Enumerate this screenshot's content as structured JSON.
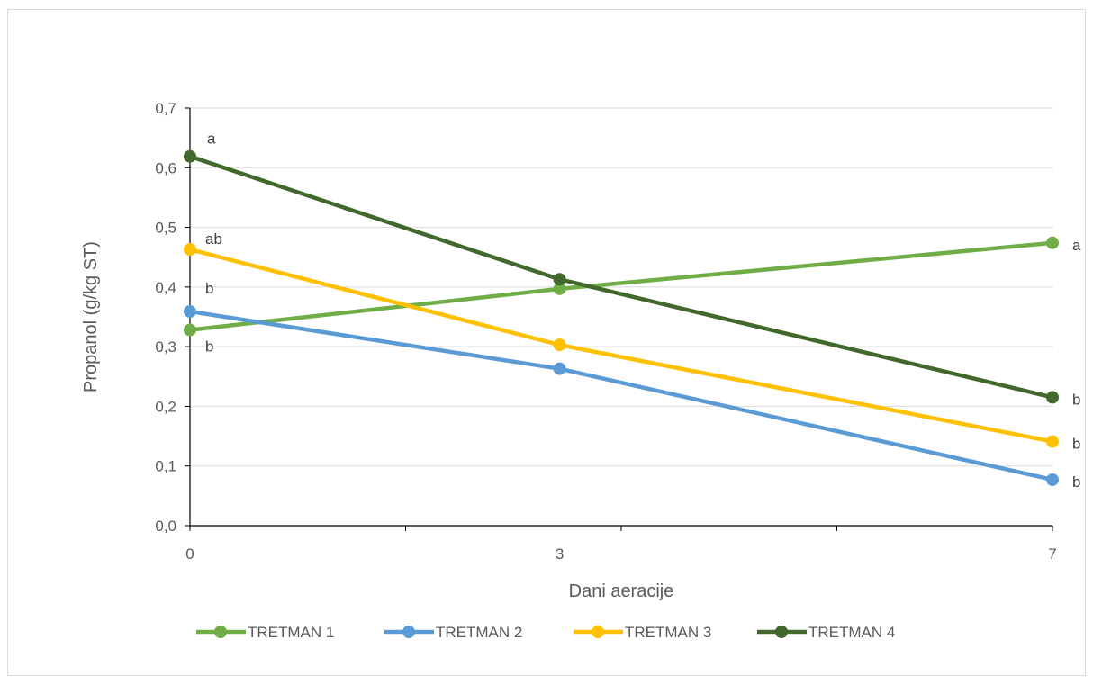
{
  "chart_data": {
    "type": "line",
    "title": "",
    "xlabel": "Dani aeracije",
    "ylabel": "Propanol (g/kg ST)",
    "categories": [
      "0",
      "3",
      "7"
    ],
    "yticks": [
      "0,0",
      "0,1",
      "0,2",
      "0,3",
      "0,4",
      "0,5",
      "0,6",
      "0,7"
    ],
    "ylim": [
      0,
      0.7
    ],
    "grid": "horizontal",
    "legend_position": "bottom",
    "series": [
      {
        "name": "TRETMAN 1",
        "color": "#70ad47",
        "values": [
          0.328,
          0.397,
          0.474
        ],
        "labels": [
          "b",
          "",
          "a"
        ]
      },
      {
        "name": "TRETMAN 2",
        "color": "#5b9bd5",
        "values": [
          0.359,
          0.263,
          0.077
        ],
        "labels": [
          "b",
          "",
          "b"
        ]
      },
      {
        "name": "TRETMAN 3",
        "color": "#ffc000",
        "values": [
          0.463,
          0.303,
          0.141
        ],
        "labels": [
          "ab",
          "",
          "b"
        ]
      },
      {
        "name": "TRETMAN 4",
        "color": "#43682b",
        "values": [
          0.619,
          0.413,
          0.215
        ],
        "labels": [
          "a",
          "",
          "b"
        ]
      }
    ]
  }
}
